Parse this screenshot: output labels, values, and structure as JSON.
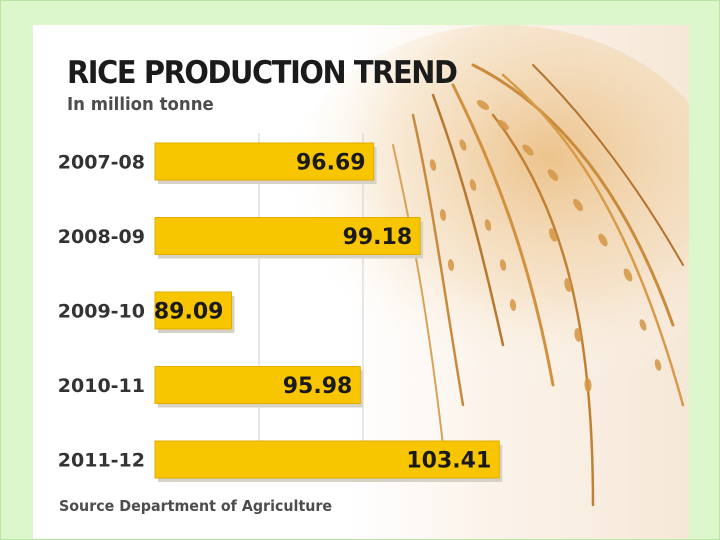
{
  "chart_data": {
    "type": "bar",
    "orientation": "horizontal",
    "title": "RICE PRODUCTION TREND",
    "subtitle": "In million tonne",
    "source": "Source Department of Agriculture",
    "categories": [
      "2007-08",
      "2008-09",
      "2009-10",
      "2010-11",
      "2011-12"
    ],
    "values": [
      96.69,
      99.18,
      89.09,
      95.98,
      103.41
    ],
    "value_labels": [
      "96.69",
      "99.18",
      "89.09",
      "95.98",
      "103.41"
    ],
    "xlim": [
      85,
      105
    ],
    "grid": true,
    "legend": "none",
    "colors": {
      "bar": "#f7c600",
      "bar_edge": "#e3ac00",
      "shadow": "#d7d2c6",
      "grid": "#cfcfcf",
      "background": "#d9f5c8"
    }
  }
}
